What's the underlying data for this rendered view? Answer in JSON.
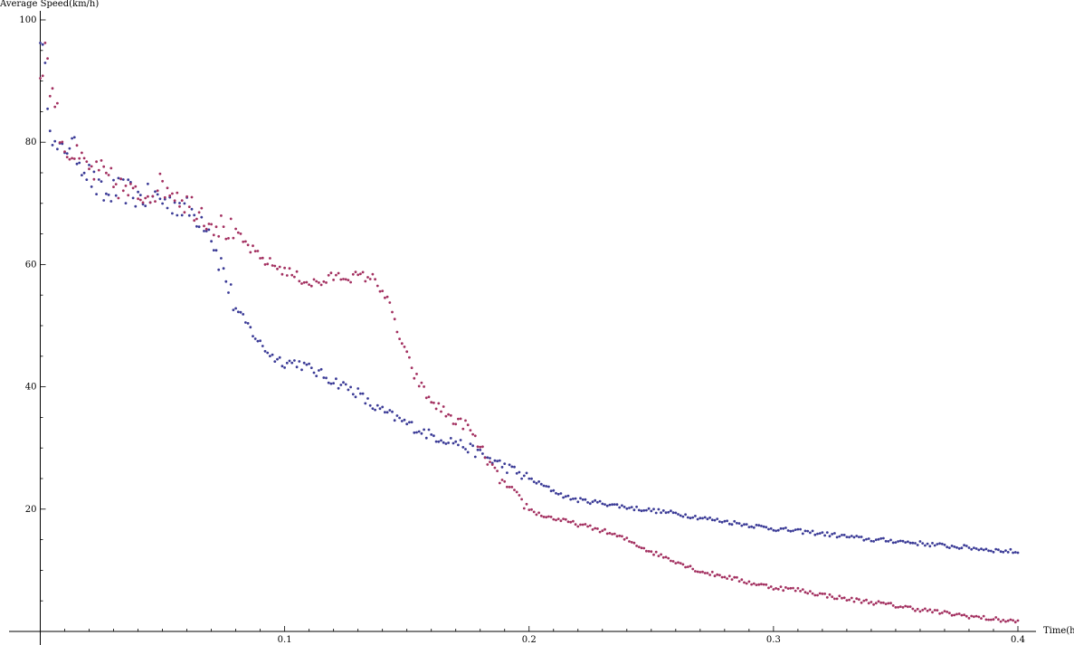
{
  "chart_data": {
    "type": "scatter",
    "title": "",
    "xlabel": "Time(h)",
    "ylabel": "Average Speed(km/h)",
    "xlim": [
      0,
      0.4
    ],
    "ylim": [
      0,
      100
    ],
    "x_ticks": [
      "0.1",
      "0.2",
      "0.3",
      "0.4"
    ],
    "y_ticks": [
      "20",
      "40",
      "60",
      "80",
      "100"
    ],
    "grid": false,
    "legend": "none",
    "series": [
      {
        "color": "#3a3a96",
        "x": [
          0.0,
          0.002,
          0.004,
          0.006,
          0.008,
          0.01,
          0.012,
          0.015,
          0.018,
          0.021,
          0.024,
          0.027,
          0.03,
          0.033,
          0.036,
          0.04,
          0.044,
          0.048,
          0.052,
          0.056,
          0.06,
          0.064,
          0.068,
          0.07,
          0.072,
          0.075,
          0.078,
          0.081,
          0.085,
          0.09,
          0.095,
          0.1,
          0.105,
          0.11,
          0.115,
          0.12,
          0.125,
          0.13,
          0.135,
          0.14,
          0.145,
          0.15,
          0.155,
          0.16,
          0.165,
          0.17,
          0.175,
          0.18,
          0.185,
          0.19,
          0.195,
          0.2,
          0.205,
          0.21,
          0.215,
          0.22,
          0.23,
          0.24,
          0.25,
          0.26,
          0.27,
          0.28,
          0.29,
          0.3,
          0.31,
          0.32,
          0.33,
          0.34,
          0.35,
          0.36,
          0.37,
          0.38,
          0.39,
          0.4
        ],
        "y": [
          98,
          91,
          84,
          79,
          78,
          79,
          80,
          78,
          76,
          74,
          72,
          71,
          72,
          72,
          72,
          71,
          71,
          71,
          70,
          70,
          69,
          68,
          67,
          65,
          62,
          59,
          55,
          52,
          50,
          47,
          45,
          44,
          44,
          43,
          42,
          41,
          40,
          39,
          37,
          36,
          35,
          34,
          33,
          32,
          31.5,
          31,
          30,
          29,
          28,
          27,
          26,
          25,
          24,
          23,
          22,
          21.5,
          21,
          20.3,
          19.8,
          19.3,
          18.6,
          18,
          17.4,
          16.8,
          16.4,
          16,
          15.5,
          15,
          14.8,
          14.4,
          14,
          13.7,
          13.3,
          13
        ],
        "x_range": [
          0.0,
          0.4
        ]
      },
      {
        "color": "#a33060",
        "x": [
          0.0,
          0.002,
          0.004,
          0.006,
          0.008,
          0.01,
          0.013,
          0.016,
          0.019,
          0.022,
          0.025,
          0.028,
          0.031,
          0.035,
          0.04,
          0.045,
          0.05,
          0.055,
          0.06,
          0.065,
          0.07,
          0.075,
          0.08,
          0.085,
          0.09,
          0.095,
          0.1,
          0.105,
          0.11,
          0.115,
          0.12,
          0.125,
          0.13,
          0.135,
          0.138,
          0.141,
          0.144,
          0.147,
          0.15,
          0.153,
          0.156,
          0.159,
          0.162,
          0.165,
          0.168,
          0.171,
          0.174,
          0.177,
          0.18,
          0.183,
          0.186,
          0.19,
          0.195,
          0.2,
          0.205,
          0.21,
          0.22,
          0.23,
          0.24,
          0.25,
          0.26,
          0.27,
          0.28,
          0.29,
          0.3,
          0.31,
          0.32,
          0.33,
          0.34,
          0.35,
          0.36,
          0.37,
          0.38,
          0.39,
          0.4
        ],
        "y": [
          90,
          96,
          89,
          87,
          82,
          79,
          78,
          77,
          76,
          75,
          75,
          74,
          73,
          72,
          71,
          72,
          73,
          72,
          70,
          69,
          67,
          66,
          65,
          63,
          61,
          60,
          59,
          58,
          57,
          57,
          58,
          58,
          58,
          58,
          57,
          55,
          52,
          48,
          45,
          42,
          40,
          38,
          37,
          36,
          35,
          34,
          34,
          32,
          30,
          28,
          26,
          24,
          22,
          20,
          19,
          18.5,
          17.5,
          16.5,
          15,
          13,
          11.5,
          9.8,
          9,
          8,
          7.2,
          6.8,
          6,
          5.3,
          4.8,
          4.2,
          3.6,
          3,
          2.5,
          2,
          1.6
        ],
        "x_range": [
          0.0,
          0.4
        ]
      }
    ]
  }
}
